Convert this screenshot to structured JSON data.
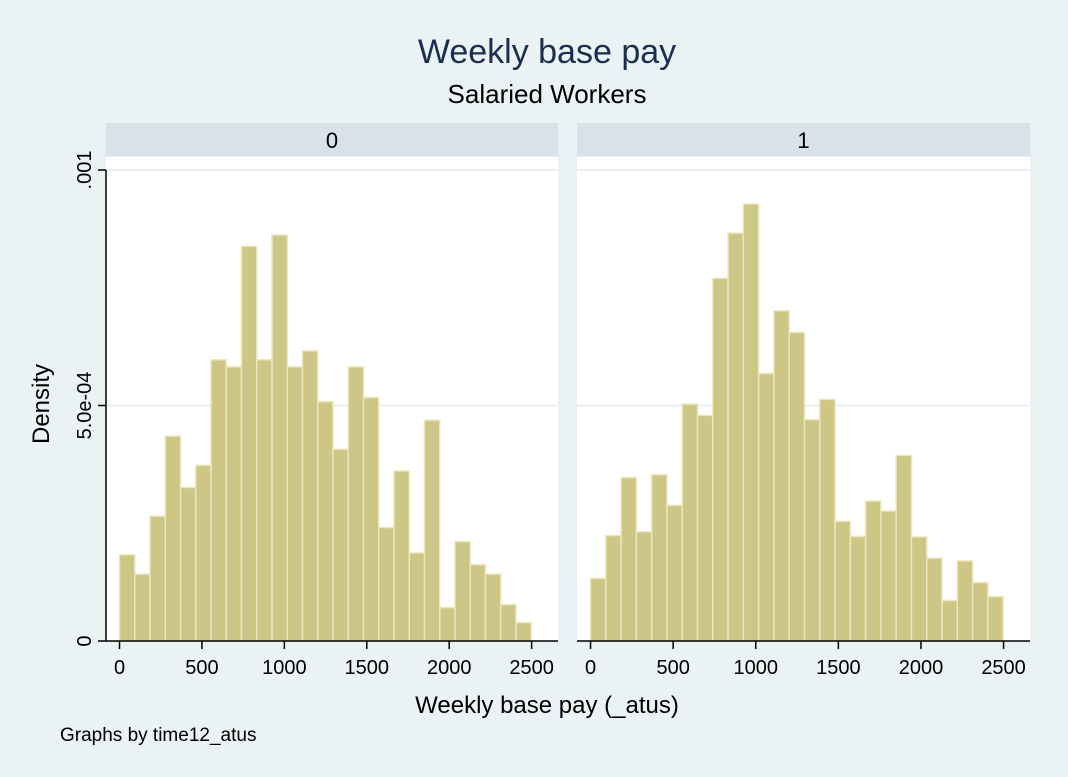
{
  "chart_data": {
    "type": "bar",
    "title": "Weekly base pay",
    "subtitle": "Salaried Workers",
    "xlabel": "Weekly base pay (_atus)",
    "ylabel": "Density",
    "note": "Graphs by time12_atus",
    "xlim": [
      -82,
      2660
    ],
    "ylim": [
      0,
      0.001
    ],
    "x_ticks": [
      0,
      500,
      1000,
      1500,
      2000,
      2500
    ],
    "y_ticks": [
      {
        "value": 0,
        "label": "0"
      },
      {
        "value": 0.0005,
        "label": "5.0e-04"
      },
      {
        "value": 0.001,
        "label": ".001"
      }
    ],
    "bin_width": 92.5,
    "grid": true,
    "legend": "none",
    "bar_color": "#cdc685",
    "bar_edge_color": "#ebe6c0",
    "panels": [
      {
        "label": "0",
        "bins_start": 0,
        "values": [
          0.000183,
          0.000142,
          0.000265,
          0.000435,
          0.000326,
          0.000373,
          0.000597,
          0.000582,
          0.000838,
          0.000597,
          0.000862,
          0.000582,
          0.000616,
          0.000508,
          0.000407,
          0.000582,
          0.000517,
          0.000241,
          0.000361,
          0.000187,
          0.000469,
          7.1e-05,
          0.000211,
          0.000162,
          0.000142,
          7.7e-05,
          3.9e-05
        ]
      },
      {
        "label": "1",
        "bins_start": 0,
        "values": [
          0.000133,
          0.000224,
          0.000347,
          0.000232,
          0.000353,
          0.000288,
          0.000503,
          0.000479,
          0.00077,
          0.000866,
          0.000928,
          0.000568,
          0.000701,
          0.000655,
          0.00047,
          0.000513,
          0.000254,
          0.000222,
          0.000297,
          0.000276,
          0.000394,
          0.000221,
          0.000176,
          8.6e-05,
          0.00017,
          0.000124,
          9.4e-05
        ]
      }
    ]
  }
}
